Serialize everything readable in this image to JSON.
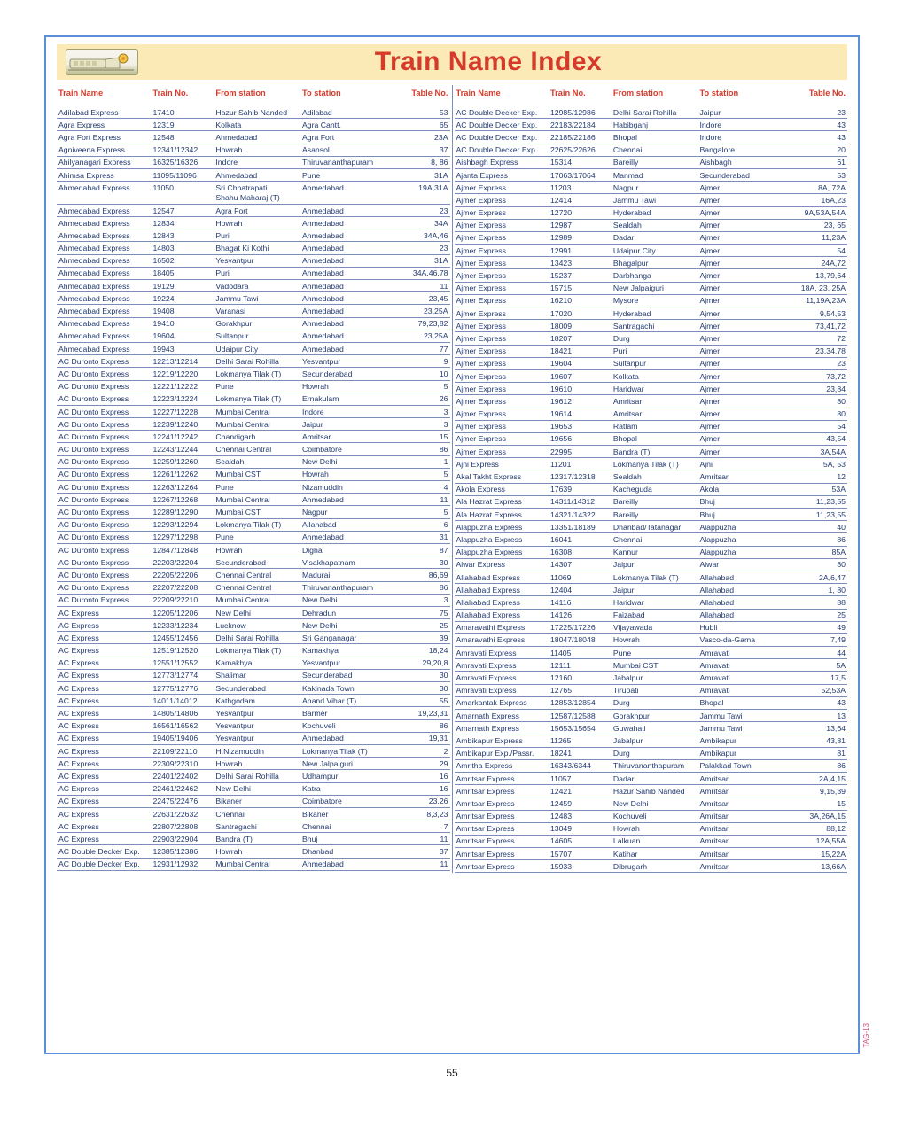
{
  "title": "Train Name Index",
  "page_number": "55",
  "side_tag": "TAG-13",
  "headers": [
    "Train Name",
    "Train No.",
    "From station",
    "To station",
    "Table No."
  ],
  "left": [
    {
      "n": "Adilabad Express",
      "no": "17410",
      "f": "Hazur Sahib Nanded",
      "t": "Adilabad",
      "tab": "53"
    },
    {
      "n": "Agra Express",
      "no": "12319",
      "f": "Kolkata",
      "t": "Agra Cantt.",
      "tab": "65"
    },
    {
      "n": "Agra Fort Express",
      "no": "12548",
      "f": "Ahmedabad",
      "t": "Agra Fort",
      "tab": "23A"
    },
    {
      "n": "Agniveena Express",
      "no": "12341/12342",
      "f": "Howrah",
      "t": "Asansol",
      "tab": "37"
    },
    {
      "n": "Ahilyanagari Express",
      "no": "16325/16326",
      "f": "Indore",
      "t": "Thiruvananthapuram",
      "tab": "8, 86"
    },
    {
      "n": "Ahimsa Express",
      "no": "11095/11096",
      "f": "Ahmedabad",
      "t": "Pune",
      "tab": "31A"
    },
    {
      "n": "Ahmedabad Express",
      "no": "11050",
      "f": "Sri Chhatrapati",
      "t": "Ahmedabad",
      "tab": "19A,31A",
      "f2": "Shahu Maharaj (T)"
    },
    {
      "n": "Ahmedabad Express",
      "no": "12547",
      "f": "Agra Fort",
      "t": "Ahmedabad",
      "tab": "23"
    },
    {
      "n": "Ahmedabad Express",
      "no": "12834",
      "f": "Howrah",
      "t": "Ahmedabad",
      "tab": "34A"
    },
    {
      "n": "Ahmedabad Express",
      "no": "12843",
      "f": "Puri",
      "t": "Ahmedabad",
      "tab": "34A,46"
    },
    {
      "n": "Ahmedabad Express",
      "no": "14803",
      "f": "Bhagat Ki Kothi",
      "t": "Ahmedabad",
      "tab": "23"
    },
    {
      "n": "Ahmedabad Express",
      "no": "16502",
      "f": "Yesvantpur",
      "t": "Ahmedabad",
      "tab": "31A"
    },
    {
      "n": "Ahmedabad Express",
      "no": "18405",
      "f": "Puri",
      "t": "Ahmedabad",
      "tab": "34A,46,78"
    },
    {
      "n": "Ahmedabad Express",
      "no": "19129",
      "f": "Vadodara",
      "t": "Ahmedabad",
      "tab": "11"
    },
    {
      "n": "Ahmedabad Express",
      "no": "19224",
      "f": "Jammu Tawi",
      "t": "Ahmedabad",
      "tab": "23,45"
    },
    {
      "n": "Ahmedabad Express",
      "no": "19408",
      "f": "Varanasi",
      "t": "Ahmedabad",
      "tab": "23,25A"
    },
    {
      "n": "Ahmedabad Express",
      "no": "19410",
      "f": "Gorakhpur",
      "t": "Ahmedabad",
      "tab": "79,23,82"
    },
    {
      "n": "Ahmedabad Express",
      "no": "19604",
      "f": "Sultanpur",
      "t": "Ahmedabad",
      "tab": "23,25A"
    },
    {
      "n": "Ahmedabad Express",
      "no": "19943",
      "f": "Udaipur City",
      "t": "Ahmedabad",
      "tab": "77"
    },
    {
      "n": "AC Duronto Express",
      "no": "12213/12214",
      "f": "Delhi Sarai Rohilla",
      "t": "Yesvantpur",
      "tab": "9"
    },
    {
      "n": "AC Duronto Express",
      "no": "12219/12220",
      "f": "Lokmanya Tilak (T)",
      "t": "Secunderabad",
      "tab": "10"
    },
    {
      "n": "AC Duronto Express",
      "no": "12221/12222",
      "f": "Pune",
      "t": "Howrah",
      "tab": "5"
    },
    {
      "n": "AC Duronto Express",
      "no": "12223/12224",
      "f": "Lokmanya Tilak (T)",
      "t": "Ernakulam",
      "tab": "26"
    },
    {
      "n": "AC Duronto Express",
      "no": "12227/12228",
      "f": "Mumbai Central",
      "t": "Indore",
      "tab": "3"
    },
    {
      "n": "AC Duronto Express",
      "no": "12239/12240",
      "f": "Mumbai Central",
      "t": "Jaipur",
      "tab": "3"
    },
    {
      "n": "AC Duronto Express",
      "no": "12241/12242",
      "f": "Chandigarh",
      "t": "Amritsar",
      "tab": "15"
    },
    {
      "n": "AC Duronto Express",
      "no": "12243/12244",
      "f": "Chennai Central",
      "t": "Coimbatore",
      "tab": "86"
    },
    {
      "n": "AC  Duronto Express",
      "no": "12259/12260",
      "f": "Sealdah",
      "t": "New Delhi",
      "tab": "1"
    },
    {
      "n": "AC Duronto Express",
      "no": "12261/12262",
      "f": "Mumbai CST",
      "t": "Howrah",
      "tab": "5"
    },
    {
      "n": "AC Duronto Express",
      "no": "12263/12264",
      "f": "Pune",
      "t": "Nizamuddin",
      "tab": "4"
    },
    {
      "n": "AC Duronto Express",
      "no": "12267/12268",
      "f": "Mumbai Central",
      "t": "Ahmedabad",
      "tab": "11"
    },
    {
      "n": "AC Duronto Express",
      "no": "12289/12290",
      "f": "Mumbai CST",
      "t": "Nagpur",
      "tab": "5"
    },
    {
      "n": "AC Duronto Express",
      "no": "12293/12294",
      "f": "Lokmanya Tilak (T)",
      "t": "Allahabad",
      "tab": "6"
    },
    {
      "n": "AC Duronto Express",
      "no": "12297/12298",
      "f": "Pune",
      "t": "Ahmedabad",
      "tab": "31"
    },
    {
      "n": "AC Duronto Express",
      "no": "12847/12848",
      "f": "Howrah",
      "t": "Digha",
      "tab": "87"
    },
    {
      "n": "AC Duronto Express",
      "no": "22203/22204",
      "f": "Secunderabad",
      "t": "Visakhapatnam",
      "tab": "30"
    },
    {
      "n": "AC Duronto Express",
      "no": "22205/22206",
      "f": "Chennai Central",
      "t": "Madurai",
      "tab": "86,69"
    },
    {
      "n": "AC Duronto Express",
      "no": "22207/22208",
      "f": "Chennai Central",
      "t": "Thiruvananthapuram",
      "tab": "86"
    },
    {
      "n": "AC Duronto Express",
      "no": "22209/22210",
      "f": "Mumbai Central",
      "t": "New Delhi",
      "tab": "3"
    },
    {
      "n": "AC Express",
      "no": "12205/12206",
      "f": "New Delhi",
      "t": "Dehradun",
      "tab": "75"
    },
    {
      "n": "AC Express",
      "no": "12233/12234",
      "f": "Lucknow",
      "t": "New Delhi",
      "tab": "25"
    },
    {
      "n": "AC Express",
      "no": "12455/12456",
      "f": "Delhi Sarai Rohilla",
      "t": "Sri Ganganagar",
      "tab": "39"
    },
    {
      "n": "AC Express",
      "no": "12519/12520",
      "f": "Lokmanya Tilak (T)",
      "t": "Kamakhya",
      "tab": "18,24"
    },
    {
      "n": "AC Express",
      "no": "12551/12552",
      "f": "Kamakhya",
      "t": "Yesvantpur",
      "tab": "29,20,8"
    },
    {
      "n": "AC Express",
      "no": "12773/12774",
      "f": "Shalimar",
      "t": "Secunderabad",
      "tab": "30"
    },
    {
      "n": "AC Express",
      "no": "12775/12776",
      "f": "Secunderabad",
      "t": "Kakinada Town",
      "tab": "30"
    },
    {
      "n": "AC Express",
      "no": "14011/14012",
      "f": "Kathgodam",
      "t": "Anand Vihar (T)",
      "tab": "55"
    },
    {
      "n": "AC Express",
      "no": "14805/14806",
      "f": "Yesvantpur",
      "t": "Barmer",
      "tab": "19,23,31"
    },
    {
      "n": "AC Express",
      "no": "16561/16562",
      "f": "Yesvantpur",
      "t": "Kochuveli",
      "tab": "86"
    },
    {
      "n": "AC Express",
      "no": "19405/19406",
      "f": "Yesvantpur",
      "t": "Ahmedabad",
      "tab": "19,31"
    },
    {
      "n": "AC Express",
      "no": "22109/22110",
      "f": "H.Nizamuddin",
      "t": "Lokmanya Tilak (T)",
      "tab": "2"
    },
    {
      "n": "AC Express",
      "no": "22309/22310",
      "f": "Howrah",
      "t": "New Jalpaiguri",
      "tab": "29"
    },
    {
      "n": "AC Express",
      "no": "22401/22402",
      "f": "Delhi Sarai Rohilla",
      "t": "Udhampur",
      "tab": "16"
    },
    {
      "n": "AC Express",
      "no": "22461/22462",
      "f": "New Delhi",
      "t": "Katra",
      "tab": "16"
    },
    {
      "n": "AC Express",
      "no": "22475/22476",
      "f": "Bikaner",
      "t": "Coimbatore",
      "tab": "23,26"
    },
    {
      "n": "AC Express",
      "no": "22631/22632",
      "f": "Chennai",
      "t": "Bikaner",
      "tab": "8,3,23"
    },
    {
      "n": "AC Express",
      "no": "22807/22808",
      "f": "Santragachi",
      "t": "Chennai",
      "tab": "7"
    },
    {
      "n": "AC Express",
      "no": "22903/22904",
      "f": "Bandra (T)",
      "t": "Bhuj",
      "tab": "11"
    },
    {
      "n": "AC Double Decker Exp.",
      "no": "12385/12386",
      "f": "Howrah",
      "t": "Dhanbad",
      "tab": "37"
    },
    {
      "n": "AC Double Decker Exp.",
      "no": "12931/12932",
      "f": "Mumbai Central",
      "t": "Ahmedabad",
      "tab": "11"
    }
  ],
  "right": [
    {
      "n": "AC Double Decker Exp.",
      "no": "12985/12986",
      "f": "Delhi Sarai Rohilla",
      "t": "Jaipur",
      "tab": "23"
    },
    {
      "n": "AC Double Decker Exp.",
      "no": "22183/22184",
      "f": "Habibganj",
      "t": "Indore",
      "tab": "43"
    },
    {
      "n": "AC Double Decker Exp.",
      "no": "22185/22186",
      "f": "Bhopal",
      "t": "Indore",
      "tab": "43"
    },
    {
      "n": "AC Double Decker Exp.",
      "no": "22625/22626",
      "f": "Chennai",
      "t": "Bangalore",
      "tab": "20"
    },
    {
      "n": "Aishbagh Express",
      "no": "15314",
      "f": "Bareilly",
      "t": "Aishbagh",
      "tab": "61"
    },
    {
      "n": "Ajanta Express",
      "no": "17063/17064",
      "f": "Manmad",
      "t": "Secunderabad",
      "tab": "53"
    },
    {
      "n": "Ajmer Express",
      "no": "11203",
      "f": "Nagpur",
      "t": "Ajmer",
      "tab": "8A, 72A"
    },
    {
      "n": "Ajmer Express",
      "no": "12414",
      "f": "Jammu Tawi",
      "t": "Ajmer",
      "tab": "16A,23"
    },
    {
      "n": "Ajmer Express",
      "no": "12720",
      "f": "Hyderabad",
      "t": "Ajmer",
      "tab": "9A,53A,54A"
    },
    {
      "n": "Ajmer Express",
      "no": "12987",
      "f": "Sealdah",
      "t": "Ajmer",
      "tab": "23, 65"
    },
    {
      "n": "Ajmer Express",
      "no": "12989",
      "f": "Dadar",
      "t": "Ajmer",
      "tab": "11,23A"
    },
    {
      "n": "Ajmer Express",
      "no": "12991",
      "f": "Udaipur City",
      "t": "Ajmer",
      "tab": "54"
    },
    {
      "n": "Ajmer Express",
      "no": "13423",
      "f": "Bhagalpur",
      "t": "Ajmer",
      "tab": "24A,72"
    },
    {
      "n": "Ajmer Express",
      "no": "15237",
      "f": "Darbhanga",
      "t": "Ajmer",
      "tab": "13,79,64"
    },
    {
      "n": "Ajmer Express",
      "no": "15715",
      "f": "New Jalpaiguri",
      "t": "Ajmer",
      "tab": "18A, 23, 25A"
    },
    {
      "n": "Ajmer Express",
      "no": "16210",
      "f": "Mysore",
      "t": "Ajmer",
      "tab": "11,19A,23A"
    },
    {
      "n": "Ajmer Express",
      "no": "17020",
      "f": "Hyderabad",
      "t": "Ajmer",
      "tab": "9,54,53"
    },
    {
      "n": "Ajmer Express",
      "no": "18009",
      "f": "Santragachi",
      "t": "Ajmer",
      "tab": "73,41,72"
    },
    {
      "n": "Ajmer Express",
      "no": "18207",
      "f": "Durg",
      "t": "Ajmer",
      "tab": "72"
    },
    {
      "n": "Ajmer Express",
      "no": "18421",
      "f": "Puri",
      "t": "Ajmer",
      "tab": "23,34,78"
    },
    {
      "n": "Ajmer Express",
      "no": "19604",
      "f": "Sultanpur",
      "t": "Ajmer",
      "tab": "23"
    },
    {
      "n": "Ajmer Express",
      "no": "19607",
      "f": "Kolkata",
      "t": "Ajmer",
      "tab": "73,72"
    },
    {
      "n": "Ajmer Express",
      "no": "19610",
      "f": "Haridwar",
      "t": "Ajmer",
      "tab": "23,84"
    },
    {
      "n": "Ajmer Express",
      "no": "19612",
      "f": "Amritsar",
      "t": "Ajmer",
      "tab": "80"
    },
    {
      "n": "Ajmer Express",
      "no": "19614",
      "f": "Amritsar",
      "t": "Ajmer",
      "tab": "80"
    },
    {
      "n": "Ajmer Express",
      "no": "19653",
      "f": "Ratlam",
      "t": "Ajmer",
      "tab": "54"
    },
    {
      "n": "Ajmer Express",
      "no": "19656",
      "f": "Bhopal",
      "t": "Ajmer",
      "tab": "43,54"
    },
    {
      "n": "Ajmer Express",
      "no": "22995",
      "f": "Bandra (T)",
      "t": "Ajmer",
      "tab": "3A,54A"
    },
    {
      "n": "Ajni Express",
      "no": "11201",
      "f": "Lokmanya Tilak (T)",
      "t": "Ajni",
      "tab": "5A, 53"
    },
    {
      "n": "Akal Takht Express",
      "no": "12317/12318",
      "f": "Sealdah",
      "t": "Amritsar",
      "tab": "12"
    },
    {
      "n": "Akola Express",
      "no": "17639",
      "f": "Kacheguda",
      "t": "Akola",
      "tab": "53A"
    },
    {
      "n": "Ala Hazrat Express",
      "no": "14311/14312",
      "f": "Bareilly",
      "t": "Bhuj",
      "tab": "11,23,55"
    },
    {
      "n": "Ala Hazrat Express",
      "no": "14321/14322",
      "f": "Bareilly",
      "t": "Bhuj",
      "tab": "11,23,55"
    },
    {
      "n": "Alappuzha Express",
      "no": "13351/18189",
      "f": "Dhanbad/Tatanagar",
      "t": "Alappuzha",
      "tab": "40"
    },
    {
      "n": "Alappuzha Express",
      "no": "16041",
      "f": "Chennai",
      "t": "Alappuzha",
      "tab": "86"
    },
    {
      "n": "Alappuzha Express",
      "no": "16308",
      "f": "Kannur",
      "t": "Alappuzha",
      "tab": "85A"
    },
    {
      "n": "Alwar Express",
      "no": "14307",
      "f": "Jaipur",
      "t": "Alwar",
      "tab": "80"
    },
    {
      "n": "Allahabad Express",
      "no": "11069",
      "f": "Lokmanya Tilak (T)",
      "t": "Allahabad",
      "tab": "2A,6,47"
    },
    {
      "n": "Allahabad Express",
      "no": "12404",
      "f": "Jaipur",
      "t": "Allahabad",
      "tab": "1, 80"
    },
    {
      "n": "Allahabad Express",
      "no": "14116",
      "f": "Haridwar",
      "t": "Allahabad",
      "tab": "88"
    },
    {
      "n": "Allahabad Express",
      "no": "14126",
      "f": "Faizabad",
      "t": "Allahabad",
      "tab": "25"
    },
    {
      "n": "Amaravathi Express",
      "no": "17225/17226",
      "f": "Vijayawada",
      "t": "Hubli",
      "tab": "49"
    },
    {
      "n": "Amaravathi Express",
      "no": "18047/18048",
      "f": "Howrah",
      "t": "Vasco-da-Gama",
      "tab": "7,49"
    },
    {
      "n": "Amravati Express",
      "no": "11405",
      "f": "Pune",
      "t": "Amravati",
      "tab": "44"
    },
    {
      "n": "Amravati Express",
      "no": "12111",
      "f": "Mumbai CST",
      "t": "Amravati",
      "tab": "5A"
    },
    {
      "n": "Amravati Express",
      "no": "12160",
      "f": "Jabalpur",
      "t": "Amravati",
      "tab": "17,5"
    },
    {
      "n": "Amravati Express",
      "no": "12765",
      "f": "Tirupati",
      "t": "Amravati",
      "tab": "52,53A"
    },
    {
      "n": "Amarkantak Express",
      "no": "12853/12854",
      "f": "Durg",
      "t": "Bhopal",
      "tab": "43"
    },
    {
      "n": "Amarnath Express",
      "no": "12587/12588",
      "f": "Gorakhpur",
      "t": "Jammu Tawi",
      "tab": "13"
    },
    {
      "n": "Amarnath Express",
      "no": "15653/15654",
      "f": "Guwahati",
      "t": "Jammu Tawi",
      "tab": "13,64"
    },
    {
      "n": "Ambikapur Express",
      "no": "11265",
      "f": "Jabalpur",
      "t": "Ambikapur",
      "tab": "43,81"
    },
    {
      "n": "Ambikapur Exp./Passr.",
      "no": "18241",
      "f": "Durg",
      "t": "Ambikapur",
      "tab": "81"
    },
    {
      "n": "Amritha Express",
      "no": "16343/6344",
      "f": "Thiruvananthapuram",
      "t": "Palakkad Town",
      "tab": "86"
    },
    {
      "n": "Amritsar Express",
      "no": "11057",
      "f": "Dadar",
      "t": "Amritsar",
      "tab": "2A,4,15"
    },
    {
      "n": "Amritsar Express",
      "no": "12421",
      "f": "Hazur Sahib Nanded",
      "t": "Amritsar",
      "tab": "9,15,39"
    },
    {
      "n": "Amritsar Express",
      "no": "12459",
      "f": "New Delhi",
      "t": "Amritsar",
      "tab": "15"
    },
    {
      "n": "Amritsar Express",
      "no": "12483",
      "f": "Kochuveli",
      "t": "Amritsar",
      "tab": "3A,26A,15"
    },
    {
      "n": "Amritsar Express",
      "no": "13049",
      "f": "Howrah",
      "t": "Amritsar",
      "tab": "88,12"
    },
    {
      "n": "Amritsar Express",
      "no": "14605",
      "f": "Lalkuan",
      "t": "Amritsar",
      "tab": "12A,55A"
    },
    {
      "n": "Amritsar Express",
      "no": "15707",
      "f": "Katihar",
      "t": "Amritsar",
      "tab": "15,22A"
    },
    {
      "n": "Amritsar Express",
      "no": "15933",
      "f": "Dibrugarh",
      "t": "Amritsar",
      "tab": "13,66A"
    }
  ]
}
